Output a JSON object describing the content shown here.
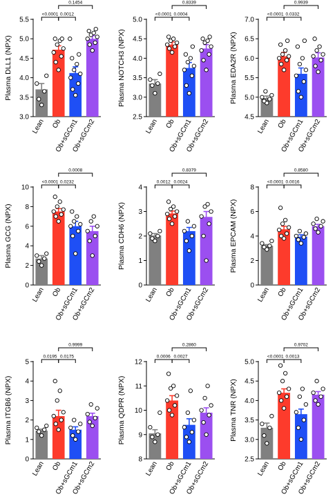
{
  "colors": {
    "Lean": "#808080",
    "Ob": "#fd3b2c",
    "Ob+sGCm1": "#1f4ff5",
    "Ob+sGCm2": "#9b4ff0"
  },
  "chart_data": [
    {
      "type": "bar",
      "ylabel": "Plasma DLL1 (NPX)",
      "ylim": [
        3.0,
        5.5
      ],
      "yticks": [
        "3.0",
        "3.5",
        "4.0",
        "4.5",
        "5.0",
        "5.5"
      ],
      "categories": [
        "Lean",
        "Ob",
        "Ob+sGCm1",
        "Ob+sGCm2"
      ],
      "values": [
        3.7,
        4.72,
        4.12,
        5.0
      ],
      "errors": [
        0.15,
        0.1,
        0.16,
        0.08
      ],
      "points": [
        [
          3.3,
          3.45,
          3.65,
          3.85,
          4.05
        ],
        [
          4.2,
          4.4,
          4.55,
          4.65,
          4.75,
          4.85,
          4.95,
          5.0,
          5.0
        ],
        [
          3.55,
          3.7,
          3.85,
          4.0,
          4.1,
          4.2,
          4.35,
          4.5,
          4.6,
          5.0
        ],
        [
          4.7,
          4.85,
          4.9,
          5.0,
          5.05,
          5.1,
          5.15,
          5.2,
          5.25
        ]
      ],
      "annotations": [
        {
          "from": 0,
          "to": 1,
          "label": "<0.0001"
        },
        {
          "from": 1,
          "to": 2,
          "label": "0.0012"
        },
        {
          "from": 1,
          "to": 3,
          "label": "0.1454"
        }
      ]
    },
    {
      "type": "bar",
      "ylabel": "Plasma NOTCH3 (NPX)",
      "ylim": [
        2.5,
        5.0
      ],
      "yticks": [
        "2.5",
        "3.0",
        "3.5",
        "4.0",
        "4.5",
        "5.0"
      ],
      "categories": [
        "Lean",
        "Ob",
        "Ob+sGCm1",
        "Ob+sGCm2"
      ],
      "values": [
        3.35,
        4.35,
        3.75,
        4.25
      ],
      "errors": [
        0.1,
        0.07,
        0.14,
        0.1
      ],
      "points": [
        [
          3.1,
          3.3,
          3.35,
          3.45,
          3.6
        ],
        [
          4.15,
          4.25,
          4.3,
          4.35,
          4.4,
          4.45,
          4.5,
          4.55
        ],
        [
          3.1,
          3.3,
          3.55,
          3.7,
          3.8,
          3.9,
          4.0,
          4.1,
          4.3
        ],
        [
          3.7,
          3.95,
          4.1,
          4.2,
          4.3,
          4.4,
          4.45,
          4.5,
          4.55
        ]
      ],
      "annotations": [
        {
          "from": 0,
          "to": 1,
          "label": "<0.0001"
        },
        {
          "from": 1,
          "to": 2,
          "label": "0.0004"
        },
        {
          "from": 1,
          "to": 3,
          "label": "0.8339"
        }
      ]
    },
    {
      "type": "bar",
      "ylabel": "Plasma EDA2R (NPX)",
      "ylim": [
        4.5,
        7.0
      ],
      "yticks": [
        "4.5",
        "5.0",
        "5.5",
        "6.0",
        "6.5",
        "7.0"
      ],
      "categories": [
        "Lean",
        "Ob",
        "Ob+sGCm1",
        "Ob+sGCm2"
      ],
      "values": [
        4.98,
        6.05,
        5.6,
        6.02
      ],
      "errors": [
        0.05,
        0.1,
        0.15,
        0.12
      ],
      "points": [
        [
          4.85,
          4.9,
          4.95,
          5.0,
          5.05,
          5.15
        ],
        [
          5.7,
          5.85,
          5.95,
          6.0,
          6.05,
          6.1,
          6.2,
          6.35,
          6.45
        ],
        [
          5.0,
          5.15,
          5.4,
          5.55,
          5.7,
          5.85,
          6.0,
          6.3,
          6.45
        ],
        [
          5.65,
          5.8,
          5.95,
          6.05,
          6.1,
          6.2,
          6.3,
          6.5
        ]
      ],
      "annotations": [
        {
          "from": 0,
          "to": 1,
          "label": "<0.0001"
        },
        {
          "from": 1,
          "to": 2,
          "label": "0.0332"
        },
        {
          "from": 1,
          "to": 3,
          "label": "0.9939"
        }
      ]
    },
    {
      "type": "bar",
      "ylabel": "Plasma GCG (NPX)",
      "ylim": [
        0,
        10
      ],
      "yticks": [
        "0",
        "2",
        "4",
        "6",
        "8",
        "10"
      ],
      "categories": [
        "Lean",
        "Ob",
        "Ob+sGCm1",
        "Ob+sGCm2"
      ],
      "values": [
        2.7,
        7.5,
        6.0,
        5.5
      ],
      "errors": [
        0.3,
        0.3,
        0.5,
        0.5
      ],
      "points": [
        [
          2.0,
          2.4,
          2.7,
          3.0,
          3.2
        ],
        [
          6.5,
          7.0,
          7.2,
          7.5,
          7.7,
          8.0,
          8.5,
          9.0
        ],
        [
          3.2,
          5.0,
          5.5,
          6.0,
          6.2,
          6.5,
          7.0,
          7.5
        ],
        [
          3.0,
          4.5,
          5.0,
          5.5,
          6.0,
          6.5,
          7.0
        ]
      ],
      "annotations": [
        {
          "from": 0,
          "to": 1,
          "label": "<0.0001"
        },
        {
          "from": 1,
          "to": 2,
          "label": "0.0232"
        },
        {
          "from": 1,
          "to": 3,
          "label": "0.0008"
        }
      ]
    },
    {
      "type": "bar",
      "ylabel": "Plasma CDH6 (NPX)",
      "ylim": [
        0,
        4
      ],
      "yticks": [
        "0",
        "1",
        "2",
        "3",
        "4"
      ],
      "categories": [
        "Lean",
        "Ob",
        "Ob+sGCm1",
        "Ob+sGCm2"
      ],
      "values": [
        2.02,
        2.92,
        2.2,
        2.78
      ],
      "errors": [
        0.08,
        0.1,
        0.15,
        0.22
      ],
      "points": [
        [
          1.8,
          1.9,
          2.0,
          2.1,
          2.2
        ],
        [
          2.5,
          2.7,
          2.8,
          2.9,
          3.0,
          3.1,
          3.2,
          3.4
        ],
        [
          1.4,
          1.8,
          2.0,
          2.2,
          2.4,
          2.6
        ],
        [
          1.0,
          2.0,
          2.5,
          2.8,
          3.0,
          3.2,
          3.3
        ]
      ],
      "annotations": [
        {
          "from": 0,
          "to": 1,
          "label": "0.0012"
        },
        {
          "from": 1,
          "to": 2,
          "label": "0.0024"
        },
        {
          "from": 1,
          "to": 3,
          "label": "0.8379"
        }
      ]
    },
    {
      "type": "bar",
      "ylabel": "Plasma EPCAM (NPX)",
      "ylim": [
        0,
        8
      ],
      "yticks": [
        "0",
        "2",
        "4",
        "6",
        "8"
      ],
      "categories": [
        "Lean",
        "Ob",
        "Ob+sGCm1",
        "Ob+sGCm2"
      ],
      "values": [
        3.2,
        4.55,
        3.95,
        4.8
      ],
      "errors": [
        0.1,
        0.25,
        0.15,
        0.15
      ],
      "points": [
        [
          2.9,
          3.1,
          3.2,
          3.4,
          3.6
        ],
        [
          3.8,
          4.0,
          4.2,
          4.5,
          4.7,
          5.0,
          5.3,
          6.3
        ],
        [
          3.4,
          3.7,
          3.9,
          4.0,
          4.2,
          4.4
        ],
        [
          4.3,
          4.6,
          4.8,
          5.0,
          5.2,
          5.4
        ]
      ],
      "annotations": [
        {
          "from": 0,
          "to": 1,
          "label": "<0.0001"
        },
        {
          "from": 1,
          "to": 2,
          "label": "0.0016"
        },
        {
          "from": 1,
          "to": 3,
          "label": "0.8580"
        }
      ]
    },
    {
      "type": "bar",
      "ylabel": "Plasma ITGB6 (NPX)",
      "ylim": [
        0,
        5
      ],
      "yticks": [
        "0",
        "1",
        "2",
        "3",
        "4",
        "5"
      ],
      "categories": [
        "Lean",
        "Ob",
        "Ob+sGCm1",
        "Ob+sGCm2"
      ],
      "values": [
        1.45,
        2.2,
        1.5,
        2.2
      ],
      "errors": [
        0.08,
        0.3,
        0.15,
        0.15
      ],
      "points": [
        [
          1.2,
          1.4,
          1.5,
          1.6,
          1.7
        ],
        [
          1.5,
          1.8,
          2.0,
          2.2,
          2.4,
          3.0,
          3.5,
          4.0
        ],
        [
          1.0,
          1.2,
          1.4,
          1.6,
          1.8,
          2.0
        ],
        [
          1.7,
          1.9,
          2.1,
          2.3,
          2.6,
          2.8
        ]
      ],
      "annotations": [
        {
          "from": 0,
          "to": 1,
          "label": "0.0195"
        },
        {
          "from": 1,
          "to": 2,
          "label": "0.0175"
        },
        {
          "from": 1,
          "to": 3,
          "label": "0.9999"
        }
      ]
    },
    {
      "type": "bar",
      "ylabel": "Plasma QDPR (NPX)",
      "ylim": [
        8,
        12
      ],
      "yticks": [
        "8",
        "9",
        "10",
        "11",
        "12"
      ],
      "categories": [
        "Lean",
        "Ob",
        "Ob+sGCm1",
        "Ob+sGCm2"
      ],
      "values": [
        9.05,
        10.4,
        9.4,
        9.9
      ],
      "errors": [
        0.15,
        0.2,
        0.25,
        0.2
      ],
      "points": [
        [
          8.7,
          8.9,
          9.0,
          9.3,
          9.9
        ],
        [
          9.8,
          10.0,
          10.2,
          10.4,
          10.6,
          10.9,
          11.0,
          11.5
        ],
        [
          8.7,
          8.9,
          9.1,
          9.3,
          9.6,
          9.9,
          10.8
        ],
        [
          9.0,
          9.5,
          9.8,
          10.0,
          10.2,
          10.5,
          11.0
        ]
      ],
      "annotations": [
        {
          "from": 0,
          "to": 1,
          "label": "0.0006"
        },
        {
          "from": 1,
          "to": 2,
          "label": "0.0027"
        },
        {
          "from": 1,
          "to": 3,
          "label": "0.2860"
        }
      ]
    },
    {
      "type": "bar",
      "ylabel": "Plasma TNR (NPX)",
      "ylim": [
        2.5,
        5.0
      ],
      "yticks": [
        "2.5",
        "3.0",
        "3.5",
        "4.0",
        "4.5",
        "5.0"
      ],
      "categories": [
        "Lean",
        "Ob",
        "Ob+sGCm1",
        "Ob+sGCm2"
      ],
      "values": [
        3.3,
        4.2,
        3.65,
        4.15
      ],
      "errors": [
        0.12,
        0.1,
        0.13,
        0.08
      ],
      "points": [
        [
          2.9,
          3.1,
          3.3,
          3.4,
          3.6
        ],
        [
          3.8,
          4.0,
          4.1,
          4.2,
          4.3,
          4.5,
          4.7,
          4.9
        ],
        [
          3.0,
          3.3,
          3.5,
          3.7,
          3.9,
          4.1,
          4.3
        ],
        [
          3.9,
          4.0,
          4.1,
          4.2,
          4.3,
          4.5
        ]
      ],
      "annotations": [
        {
          "from": 0,
          "to": 1,
          "label": "<0.0001"
        },
        {
          "from": 1,
          "to": 2,
          "label": "0.0013"
        },
        {
          "from": 1,
          "to": 3,
          "label": "0.9702"
        }
      ]
    }
  ]
}
